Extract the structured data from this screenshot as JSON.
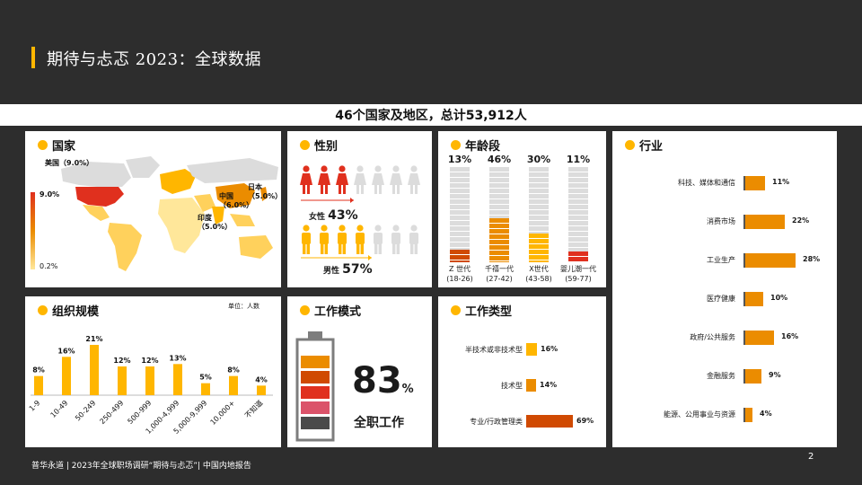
{
  "header": {
    "title": "期待与忐忑 2023：全球数据"
  },
  "subtitle": "46个国家及地区，总计53,912人",
  "colors": {
    "accent": "#ffb600",
    "orange": "#eb8c00",
    "dark_orange": "#d04a02",
    "red": "#e0301e",
    "pink": "#db536a",
    "grey": "#dcdcdc"
  },
  "country": {
    "title": "国家",
    "legend_max": "9.0%",
    "legend_min": "0.2%",
    "labels": [
      {
        "name": "美国",
        "value": "（9.0%）"
      },
      {
        "name": "中国",
        "value": "（6.0%）"
      },
      {
        "name": "日本",
        "value": "（5.0%）"
      },
      {
        "name": "印度",
        "value": "（5.0%）"
      }
    ]
  },
  "gender": {
    "title": "性别",
    "female_label": "女性",
    "female_value": "43%",
    "female_share": 0.43,
    "male_label": "男性",
    "male_value": "57%",
    "male_share": 0.57
  },
  "age": {
    "title": "年龄段",
    "groups": [
      {
        "pct": "13%",
        "name": "Z 世代",
        "range": "(18-26)",
        "share": 0.13,
        "color": "#d04a02"
      },
      {
        "pct": "46%",
        "name": "千禧一代",
        "range": "(27-42)",
        "share": 0.46,
        "color": "#eb8c00"
      },
      {
        "pct": "30%",
        "name": "X世代",
        "range": "(43-58)",
        "share": 0.3,
        "color": "#ffb600"
      },
      {
        "pct": "11%",
        "name": "婴儿潮一代",
        "range": "(59-77)",
        "share": 0.11,
        "color": "#e0301e"
      }
    ]
  },
  "industry": {
    "title": "行业",
    "items": [
      {
        "label": "科技、媒体和通信",
        "value": 11,
        "text": "11%"
      },
      {
        "label": "消费市场",
        "value": 22,
        "text": "22%"
      },
      {
        "label": "工业生产",
        "value": 28,
        "text": "28%"
      },
      {
        "label": "医疗健康",
        "value": 10,
        "text": "10%"
      },
      {
        "label": "政府/公共服务",
        "value": 16,
        "text": "16%"
      },
      {
        "label": "金融服务",
        "value": 9,
        "text": "9%"
      },
      {
        "label": "能源、公用事业与资源",
        "value": 4,
        "text": "4%"
      }
    ]
  },
  "org": {
    "title": "组织规模",
    "unit": "单位：人数",
    "chart_data": {
      "type": "bar",
      "categories": [
        "1-9",
        "10-49",
        "50-249",
        "250-499",
        "500-999",
        "1,000-4,999",
        "5,000-9,999",
        "10,000+",
        "不知道"
      ],
      "values": [
        8,
        16,
        21,
        12,
        12,
        13,
        5,
        8,
        4
      ],
      "labels": [
        "8%",
        "16%",
        "21%",
        "12%",
        "12%",
        "13%",
        "5%",
        "8%",
        "4%"
      ],
      "ylim": [
        0,
        21
      ]
    }
  },
  "work_mode": {
    "title": "工作模式",
    "value": "83",
    "percent": "%",
    "label": "全职工作"
  },
  "work_type": {
    "title": "工作类型",
    "items": [
      {
        "label": "半技术或非技术型",
        "value": 16,
        "text": "16%",
        "color": "#ffb600"
      },
      {
        "label": "技术型",
        "value": 14,
        "text": "14%",
        "color": "#eb8c00"
      },
      {
        "label": "专业/行政管理类",
        "value": 69,
        "text": "69%",
        "color": "#d04a02"
      }
    ]
  },
  "footer": {
    "text": "普华永道 | 2023年全球职场调研“期待与忐忑”| 中国内地报告",
    "page": "2"
  }
}
